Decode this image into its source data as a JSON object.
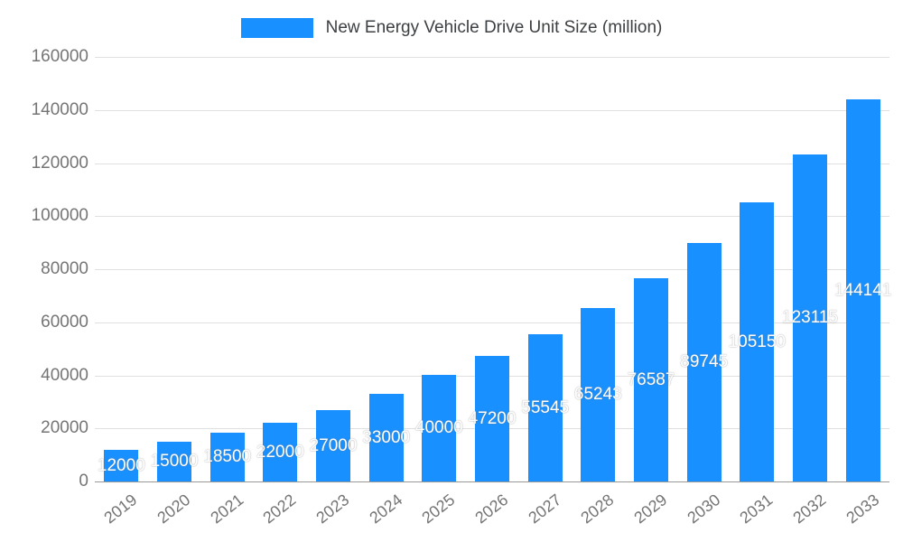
{
  "legend": {
    "label": "New Energy Vehicle Drive Unit Size (million)"
  },
  "colors": {
    "bar": "#1890ff",
    "grid": "#e0e0e0",
    "axis_line": "#999999",
    "axis_text": "#757575",
    "legend_text": "#3d4043",
    "bar_label_text": "#ffffff"
  },
  "chart_data": {
    "type": "bar",
    "title": "New Energy Vehicle Drive Unit Size (million)",
    "categories": [
      "2019",
      "2020",
      "2021",
      "2022",
      "2023",
      "2024",
      "2025",
      "2026",
      "2027",
      "2028",
      "2029",
      "2030",
      "2031",
      "2032",
      "2033"
    ],
    "values": [
      12000,
      15000,
      18500,
      22000,
      27000,
      33000,
      40000,
      47200,
      55545,
      65243,
      76587,
      89745,
      105150,
      123115,
      144141
    ],
    "xlabel": "",
    "ylabel": "",
    "ylim": [
      0,
      160000
    ],
    "ytick_interval": 20000,
    "grid": true,
    "legend_position": "top-center",
    "bar_labels": "values centered inside bars in white"
  }
}
